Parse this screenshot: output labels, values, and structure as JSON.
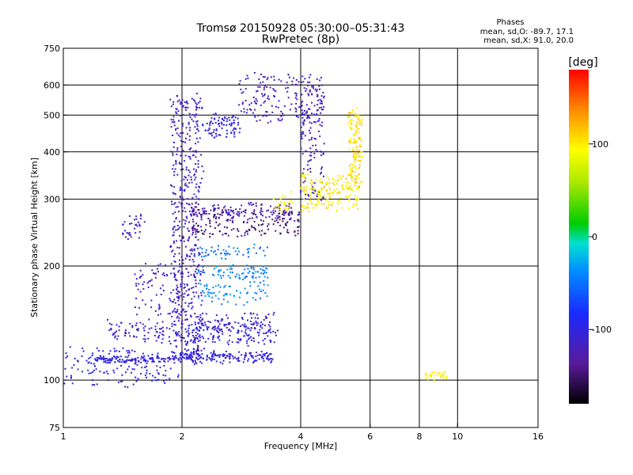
{
  "chart_data": {
    "type": "scatter",
    "title": "Tromsø 20150928 05:30:00–05:31:43",
    "subtitle": "RwPretec (8p)",
    "xlabel": "Frequency [MHz]",
    "ylabel": "Stationary phase Virtual Height [km]",
    "x_scale": "log",
    "y_scale": "log",
    "xlim": [
      1,
      16
    ],
    "ylim": [
      75,
      750
    ],
    "x_ticks": [
      {
        "value": 1,
        "label": "1"
      },
      {
        "value": 2,
        "label": "2"
      },
      {
        "value": 4,
        "label": "4"
      },
      {
        "value": 6,
        "label": "6"
      },
      {
        "value": 8,
        "label": "8"
      },
      {
        "value": 10,
        "label": "10"
      },
      {
        "value": 16,
        "label": "16"
      }
    ],
    "y_ticks": [
      {
        "value": 75,
        "label": "75"
      },
      {
        "value": 100,
        "label": "100"
      },
      {
        "value": 200,
        "label": "200"
      },
      {
        "value": 300,
        "label": "300"
      },
      {
        "value": 400,
        "label": "400"
      },
      {
        "value": 500,
        "label": "500"
      },
      {
        "value": 600,
        "label": "600"
      },
      {
        "value": 750,
        "label": "750"
      }
    ],
    "grid_x": [
      2,
      4,
      6,
      8,
      10
    ],
    "grid_y": [
      100,
      200,
      300,
      400,
      500,
      600
    ],
    "legend_title": "Phases",
    "legend_lines": [
      "mean, sd,O: -89.7, 17.1",
      "mean, sd,X:  91.0, 20.0"
    ],
    "colorbar": {
      "label": "[deg]",
      "min": -180,
      "max": 180,
      "ticks": [
        {
          "value": 100,
          "label": "100"
        },
        {
          "value": 0,
          "label": "0"
        },
        {
          "value": -100,
          "label": "-100"
        }
      ]
    },
    "traces": [
      {
        "x0": 1.0,
        "x1": 2.0,
        "y0": 98,
        "y1": 120,
        "phase": -100,
        "n": 160,
        "spread": 0.07
      },
      {
        "x0": 1.2,
        "x1": 2.0,
        "y0": 112,
        "y1": 115,
        "phase": -105,
        "n": 110,
        "spread": 0.02
      },
      {
        "x0": 1.3,
        "x1": 2.0,
        "y0": 128,
        "y1": 142,
        "phase": -110,
        "n": 90,
        "spread": 0.05
      },
      {
        "x0": 1.5,
        "x1": 2.0,
        "y0": 150,
        "y1": 200,
        "phase": -110,
        "n": 80,
        "spread": 0.07
      },
      {
        "x0": 1.4,
        "x1": 1.6,
        "y0": 240,
        "y1": 270,
        "phase": -115,
        "n": 35,
        "spread": 0.05
      },
      {
        "x0": 1.88,
        "x1": 2.25,
        "y0": 110,
        "y1": 560,
        "phase": -115,
        "n": 560,
        "spread": 0.05
      },
      {
        "x0": 2.0,
        "x1": 3.4,
        "y0": 112,
        "y1": 118,
        "phase": -105,
        "n": 150,
        "spread": 0.03
      },
      {
        "x0": 2.05,
        "x1": 3.45,
        "y0": 125,
        "y1": 140,
        "phase": -105,
        "n": 130,
        "spread": 0.04
      },
      {
        "x0": 2.2,
        "x1": 3.5,
        "y0": 135,
        "y1": 150,
        "phase": -110,
        "n": 90,
        "spread": 0.04
      },
      {
        "x0": 2.2,
        "x1": 3.3,
        "y0": 160,
        "y1": 180,
        "phase": -40,
        "n": 70,
        "spread": 0.04
      },
      {
        "x0": 2.2,
        "x1": 3.3,
        "y0": 185,
        "y1": 200,
        "phase": -45,
        "n": 70,
        "spread": 0.03
      },
      {
        "x0": 2.2,
        "x1": 3.3,
        "y0": 210,
        "y1": 225,
        "phase": -50,
        "n": 50,
        "spread": 0.03
      },
      {
        "x0": 2.1,
        "x1": 3.8,
        "y0": 270,
        "y1": 290,
        "phase": -125,
        "n": 130,
        "spread": 0.03
      },
      {
        "x0": 2.1,
        "x1": 4.0,
        "y0": 240,
        "y1": 282,
        "phase": -145,
        "n": 170,
        "spread": 0.025
      },
      {
        "x0": 3.4,
        "x1": 3.8,
        "y0": 278,
        "y1": 310,
        "phase": 95,
        "n": 25,
        "spread": 0.04
      },
      {
        "x0": 2.3,
        "x1": 2.8,
        "y0": 440,
        "y1": 500,
        "phase": -105,
        "n": 80,
        "spread": 0.04
      },
      {
        "x0": 2.8,
        "x1": 4.6,
        "y0": 480,
        "y1": 640,
        "phase": -120,
        "n": 170,
        "spread": 0.02
      },
      {
        "x0": 4.0,
        "x1": 4.6,
        "y0": 300,
        "y1": 600,
        "phase": -115,
        "n": 130,
        "spread": 0.015
      },
      {
        "x0": 4.0,
        "x1": 5.6,
        "y0": 280,
        "y1": 345,
        "phase": 100,
        "n": 170,
        "spread": 0.025
      },
      {
        "x0": 5.3,
        "x1": 5.7,
        "y0": 320,
        "y1": 520,
        "phase": 105,
        "n": 150,
        "spread": 0.04
      },
      {
        "x0": 8.3,
        "x1": 9.4,
        "y0": 100,
        "y1": 105,
        "phase": 95,
        "n": 30,
        "spread": 0.02
      }
    ]
  }
}
